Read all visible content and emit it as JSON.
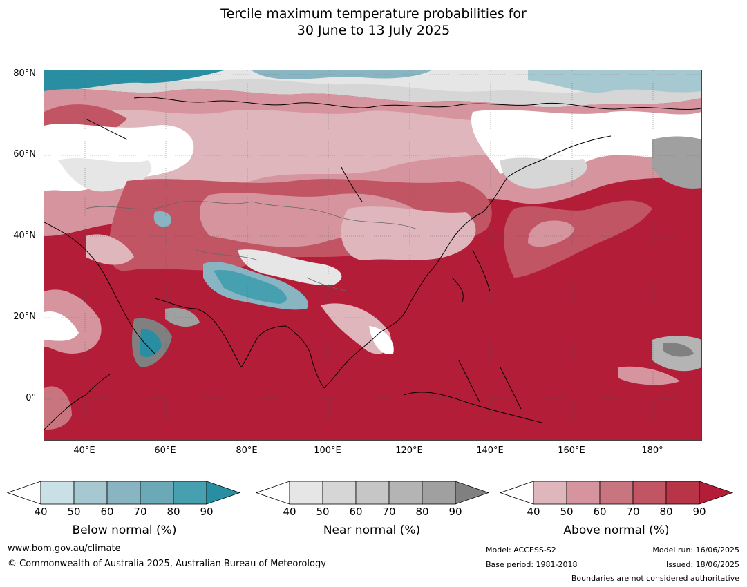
{
  "title_line1": "Tercile maximum temperature probabilities for",
  "title_line2": "30 June to 13 July 2025",
  "map": {
    "lat_labels": [
      "80°N",
      "60°N",
      "40°N",
      "20°N",
      "0°"
    ],
    "lon_labels": [
      "40°E",
      "60°E",
      "80°E",
      "100°E",
      "120°E",
      "140°E",
      "160°E",
      "180°"
    ]
  },
  "colorbars": [
    {
      "label": "Below normal (%)",
      "ticks": [
        "40",
        "50",
        "60",
        "70",
        "80",
        "90"
      ],
      "colors": [
        "#ffffff",
        "#c9e0e6",
        "#a6c8d0",
        "#88b5c1",
        "#6aa9b5",
        "#46a0b0",
        "#2a8ea3"
      ]
    },
    {
      "label": "Near normal (%)",
      "ticks": [
        "40",
        "50",
        "60",
        "70",
        "80",
        "90"
      ],
      "colors": [
        "#ffffff",
        "#e6e6e6",
        "#d6d6d6",
        "#c6c6c6",
        "#b4b4b4",
        "#a0a0a0",
        "#808080"
      ]
    },
    {
      "label": "Above normal (%)",
      "ticks": [
        "40",
        "50",
        "60",
        "70",
        "80",
        "90"
      ],
      "colors": [
        "#ffffff",
        "#e0b6bd",
        "#d6959e",
        "#c97580",
        "#c25563",
        "#b83548",
        "#b31d38"
      ]
    }
  ],
  "footer": {
    "website": "www.bom.gov.au/climate",
    "copyright": "© Commonwealth of Australia 2025, Australian Bureau of Meteorology",
    "model": "Model: ACCESS-S2",
    "base_period": "Base period: 1981-2018",
    "model_run": "Model run: 16/06/2025",
    "issued": "Issued: 18/06/2025",
    "boundaries": "Boundaries are not considered authoritative"
  }
}
